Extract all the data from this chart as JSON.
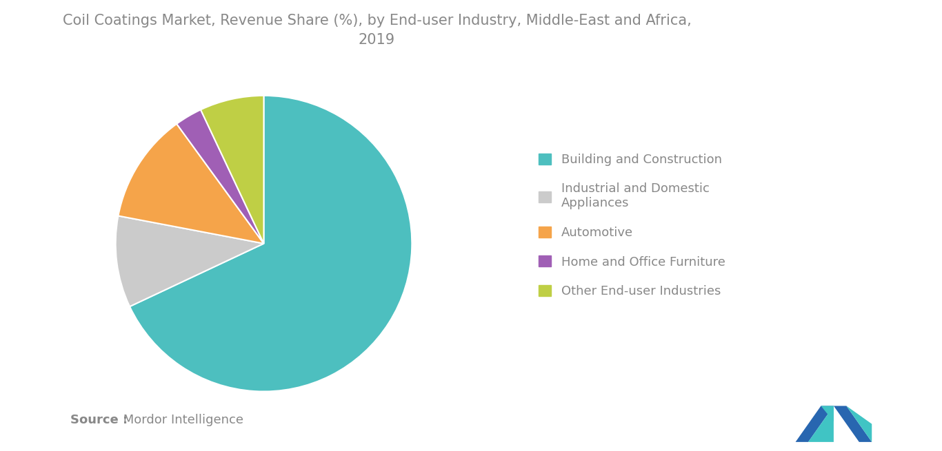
{
  "title": "Coil Coatings Market, Revenue Share (%), by End-user Industry, Middle-East and Africa,\n2019",
  "labels": [
    "Building and Construction",
    "Industrial and Domestic\nAppliances",
    "Automotive",
    "Home and Office Furniture",
    "Other End-user Industries"
  ],
  "values": [
    68,
    10,
    12,
    3,
    7
  ],
  "colors": [
    "#4DBFBF",
    "#CBCBCB",
    "#F5A44A",
    "#A05FB5",
    "#BFCF45"
  ],
  "legend_labels": [
    "Building and Construction",
    "Industrial and Domestic\nAppliances",
    "Automotive",
    "Home and Office Furniture",
    "Other End-user Industries"
  ],
  "source_bold": "Source :",
  "source_normal": " Mordor Intelligence",
  "background_color": "#FFFFFF",
  "title_fontsize": 15,
  "legend_fontsize": 13,
  "source_fontsize": 13,
  "text_color": "#888888"
}
